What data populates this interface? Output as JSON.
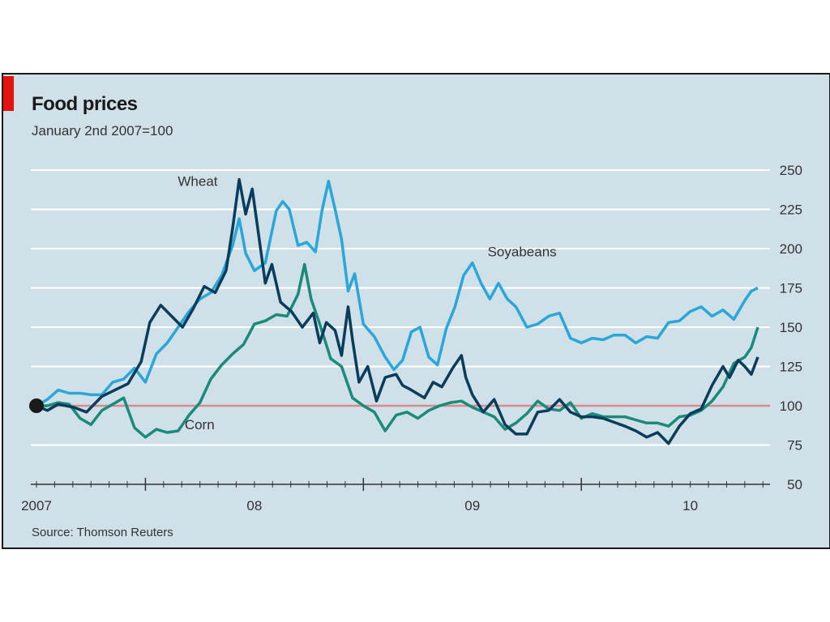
{
  "chart_data": {
    "type": "line",
    "title": "Food prices",
    "subtitle": "January 2nd 2007=100",
    "source": "Source: Thomson Reuters",
    "x_ticks": [
      "2007",
      "08",
      "09",
      "10"
    ],
    "ylim": [
      50,
      250
    ],
    "y_ticks": [
      50,
      75,
      100,
      125,
      150,
      175,
      200,
      225,
      250
    ],
    "baseline": 100,
    "grid": true,
    "y_axis_side": "right",
    "colors": {
      "Wheat": "#0a3d5c",
      "Soyabeans": "#2aa6d8",
      "Corn": "#1a8a7a",
      "baseline": "#d98a8f",
      "background": "#d0e0e8",
      "accent": "#e3120b"
    },
    "series": [
      {
        "name": "Wheat",
        "points": [
          [
            2007.0,
            100
          ],
          [
            2007.05,
            97
          ],
          [
            2007.1,
            101
          ],
          [
            2007.17,
            99
          ],
          [
            2007.23,
            96
          ],
          [
            2007.3,
            106
          ],
          [
            2007.36,
            110
          ],
          [
            2007.42,
            114
          ],
          [
            2007.48,
            128
          ],
          [
            2007.52,
            153
          ],
          [
            2007.57,
            164
          ],
          [
            2007.62,
            157
          ],
          [
            2007.67,
            150
          ],
          [
            2007.72,
            162
          ],
          [
            2007.77,
            176
          ],
          [
            2007.82,
            172
          ],
          [
            2007.87,
            186
          ],
          [
            2007.9,
            213
          ],
          [
            2007.93,
            244
          ],
          [
            2007.96,
            222
          ],
          [
            2007.99,
            238
          ],
          [
            2008.02,
            208
          ],
          [
            2008.05,
            178
          ],
          [
            2008.08,
            190
          ],
          [
            2008.12,
            166
          ],
          [
            2008.17,
            160
          ],
          [
            2008.22,
            150
          ],
          [
            2008.27,
            159
          ],
          [
            2008.3,
            140
          ],
          [
            2008.33,
            153
          ],
          [
            2008.37,
            148
          ],
          [
            2008.4,
            132
          ],
          [
            2008.43,
            163
          ],
          [
            2008.45,
            142
          ],
          [
            2008.48,
            115
          ],
          [
            2008.52,
            125
          ],
          [
            2008.56,
            103
          ],
          [
            2008.6,
            118
          ],
          [
            2008.65,
            120
          ],
          [
            2008.68,
            113
          ],
          [
            2008.72,
            110
          ],
          [
            2008.78,
            105
          ],
          [
            2008.82,
            115
          ],
          [
            2008.86,
            112
          ],
          [
            2008.91,
            124
          ],
          [
            2008.95,
            132
          ],
          [
            2008.97,
            118
          ],
          [
            2009.0,
            107
          ],
          [
            2009.05,
            96
          ],
          [
            2009.1,
            104
          ],
          [
            2009.15,
            88
          ],
          [
            2009.2,
            82
          ],
          [
            2009.25,
            82
          ],
          [
            2009.3,
            96
          ],
          [
            2009.35,
            97
          ],
          [
            2009.4,
            104
          ],
          [
            2009.45,
            96
          ],
          [
            2009.5,
            93
          ],
          [
            2009.55,
            93
          ],
          [
            2009.6,
            92
          ],
          [
            2009.7,
            87
          ],
          [
            2009.75,
            84
          ],
          [
            2009.8,
            80
          ],
          [
            2009.85,
            83
          ],
          [
            2009.9,
            76
          ],
          [
            2009.95,
            87
          ],
          [
            2010.0,
            95
          ],
          [
            2010.05,
            98
          ],
          [
            2010.1,
            113
          ],
          [
            2010.15,
            125
          ],
          [
            2010.18,
            118
          ],
          [
            2010.22,
            129
          ],
          [
            2010.25,
            125
          ],
          [
            2010.28,
            120
          ],
          [
            2010.31,
            131
          ]
        ]
      },
      {
        "name": "Soyabeans",
        "points": [
          [
            2007.0,
            100
          ],
          [
            2007.05,
            104
          ],
          [
            2007.1,
            110
          ],
          [
            2007.15,
            108
          ],
          [
            2007.2,
            108
          ],
          [
            2007.25,
            107
          ],
          [
            2007.3,
            107
          ],
          [
            2007.35,
            115
          ],
          [
            2007.4,
            117
          ],
          [
            2007.45,
            124
          ],
          [
            2007.5,
            115
          ],
          [
            2007.55,
            133
          ],
          [
            2007.6,
            140
          ],
          [
            2007.65,
            150
          ],
          [
            2007.7,
            160
          ],
          [
            2007.75,
            168
          ],
          [
            2007.8,
            172
          ],
          [
            2007.85,
            183
          ],
          [
            2007.9,
            202
          ],
          [
            2007.93,
            219
          ],
          [
            2007.96,
            197
          ],
          [
            2008.0,
            186
          ],
          [
            2008.05,
            191
          ],
          [
            2008.1,
            224
          ],
          [
            2008.13,
            230
          ],
          [
            2008.16,
            225
          ],
          [
            2008.2,
            202
          ],
          [
            2008.24,
            204
          ],
          [
            2008.28,
            198
          ],
          [
            2008.31,
            224
          ],
          [
            2008.34,
            243
          ],
          [
            2008.37,
            225
          ],
          [
            2008.4,
            206
          ],
          [
            2008.43,
            173
          ],
          [
            2008.46,
            184
          ],
          [
            2008.5,
            152
          ],
          [
            2008.55,
            144
          ],
          [
            2008.6,
            131
          ],
          [
            2008.64,
            123
          ],
          [
            2008.68,
            129
          ],
          [
            2008.72,
            147
          ],
          [
            2008.76,
            150
          ],
          [
            2008.8,
            131
          ],
          [
            2008.84,
            126
          ],
          [
            2008.88,
            149
          ],
          [
            2008.92,
            163
          ],
          [
            2008.96,
            183
          ],
          [
            2009.0,
            191
          ],
          [
            2009.04,
            178
          ],
          [
            2009.08,
            168
          ],
          [
            2009.12,
            178
          ],
          [
            2009.16,
            168
          ],
          [
            2009.2,
            163
          ],
          [
            2009.25,
            150
          ],
          [
            2009.3,
            152
          ],
          [
            2009.35,
            157
          ],
          [
            2009.4,
            159
          ],
          [
            2009.45,
            143
          ],
          [
            2009.5,
            140
          ],
          [
            2009.55,
            143
          ],
          [
            2009.6,
            142
          ],
          [
            2009.65,
            145
          ],
          [
            2009.7,
            145
          ],
          [
            2009.75,
            140
          ],
          [
            2009.8,
            144
          ],
          [
            2009.85,
            143
          ],
          [
            2009.9,
            153
          ],
          [
            2009.95,
            154
          ],
          [
            2010.0,
            160
          ],
          [
            2010.05,
            163
          ],
          [
            2010.1,
            157
          ],
          [
            2010.15,
            161
          ],
          [
            2010.2,
            155
          ],
          [
            2010.25,
            167
          ],
          [
            2010.28,
            173
          ],
          [
            2010.31,
            175
          ]
        ]
      },
      {
        "name": "Corn",
        "points": [
          [
            2007.0,
            100
          ],
          [
            2007.05,
            100
          ],
          [
            2007.1,
            102
          ],
          [
            2007.15,
            101
          ],
          [
            2007.2,
            92
          ],
          [
            2007.25,
            88
          ],
          [
            2007.3,
            97
          ],
          [
            2007.35,
            101
          ],
          [
            2007.4,
            105
          ],
          [
            2007.45,
            86
          ],
          [
            2007.5,
            80
          ],
          [
            2007.55,
            85
          ],
          [
            2007.6,
            83
          ],
          [
            2007.65,
            84
          ],
          [
            2007.7,
            94
          ],
          [
            2007.75,
            102
          ],
          [
            2007.8,
            117
          ],
          [
            2007.85,
            126
          ],
          [
            2007.9,
            133
          ],
          [
            2007.95,
            139
          ],
          [
            2008.0,
            152
          ],
          [
            2008.05,
            154
          ],
          [
            2008.1,
            158
          ],
          [
            2008.15,
            157
          ],
          [
            2008.2,
            171
          ],
          [
            2008.23,
            190
          ],
          [
            2008.26,
            168
          ],
          [
            2008.3,
            152
          ],
          [
            2008.35,
            130
          ],
          [
            2008.4,
            125
          ],
          [
            2008.45,
            105
          ],
          [
            2008.5,
            100
          ],
          [
            2008.55,
            96
          ],
          [
            2008.6,
            84
          ],
          [
            2008.65,
            94
          ],
          [
            2008.7,
            96
          ],
          [
            2008.75,
            92
          ],
          [
            2008.8,
            97
          ],
          [
            2008.85,
            100
          ],
          [
            2008.9,
            102
          ],
          [
            2008.95,
            103
          ],
          [
            2009.0,
            99
          ],
          [
            2009.05,
            96
          ],
          [
            2009.1,
            93
          ],
          [
            2009.15,
            85
          ],
          [
            2009.2,
            89
          ],
          [
            2009.25,
            95
          ],
          [
            2009.3,
            103
          ],
          [
            2009.35,
            98
          ],
          [
            2009.4,
            97
          ],
          [
            2009.45,
            102
          ],
          [
            2009.5,
            92
          ],
          [
            2009.55,
            95
          ],
          [
            2009.6,
            93
          ],
          [
            2009.65,
            93
          ],
          [
            2009.7,
            93
          ],
          [
            2009.75,
            91
          ],
          [
            2009.8,
            89
          ],
          [
            2009.85,
            89
          ],
          [
            2009.9,
            87
          ],
          [
            2009.95,
            93
          ],
          [
            2010.0,
            94
          ],
          [
            2010.05,
            97
          ],
          [
            2010.1,
            103
          ],
          [
            2010.15,
            112
          ],
          [
            2010.2,
            127
          ],
          [
            2010.25,
            131
          ],
          [
            2010.28,
            137
          ],
          [
            2010.31,
            150
          ]
        ]
      }
    ],
    "annotations": [
      "Wheat",
      "Soyabeans",
      "Corn"
    ]
  }
}
